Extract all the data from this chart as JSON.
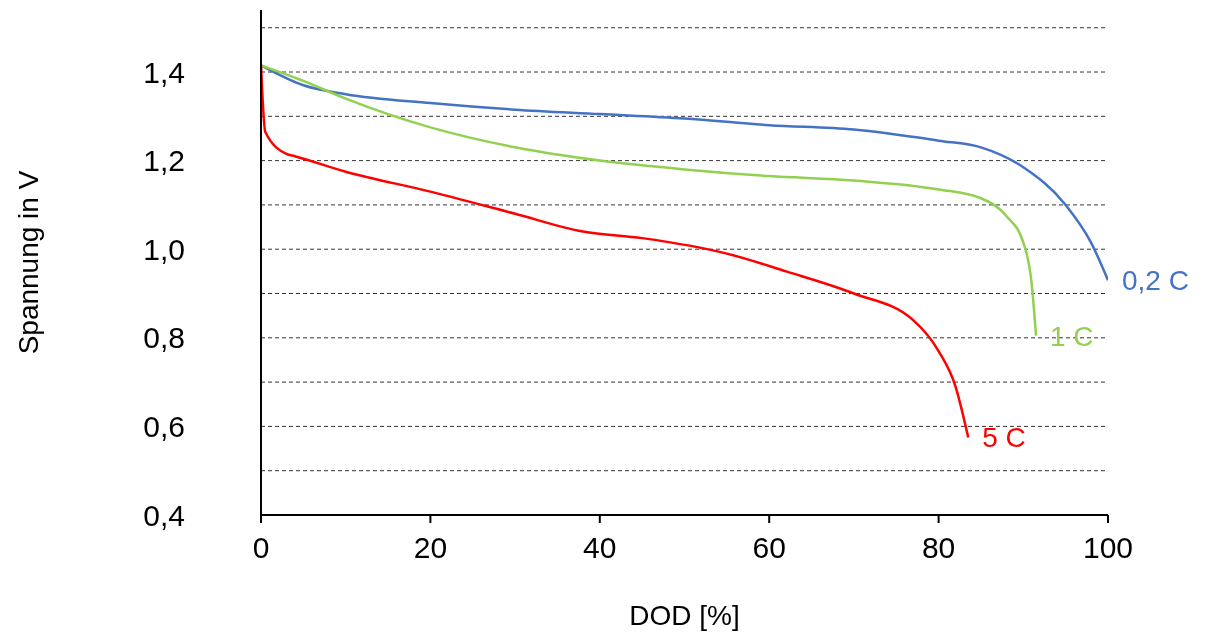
{
  "chart_data": {
    "type": "line",
    "xlabel": "DOD [%]",
    "ylabel": "Spannung in V",
    "xlim": [
      0,
      100
    ],
    "xticks": [
      0,
      20,
      40,
      60,
      80,
      100
    ],
    "ylim": [
      0.4,
      1.54
    ],
    "yticks": [
      {
        "value": 0.4,
        "label": "0,4"
      },
      {
        "value": 0.5,
        "label": null
      },
      {
        "value": 0.6,
        "label": "0,6"
      },
      {
        "value": 0.7,
        "label": null
      },
      {
        "value": 0.8,
        "label": "0,8"
      },
      {
        "value": 0.9,
        "label": null
      },
      {
        "value": 1.0,
        "label": "1,0"
      },
      {
        "value": 1.1,
        "label": null
      },
      {
        "value": 1.2,
        "label": "1,2"
      },
      {
        "value": 1.3,
        "label": null
      },
      {
        "value": 1.4,
        "label": "1,4"
      },
      {
        "value": 1.5,
        "label": null
      }
    ],
    "grid": "y",
    "marker": "none",
    "line_style": "solid",
    "series": [
      {
        "name": "0,2 C",
        "color": "#4472c4",
        "x": [
          0,
          5,
          10,
          20,
          30,
          40,
          50,
          60,
          70,
          80,
          85,
          90,
          95,
          98,
          100
        ],
        "values": [
          1.415,
          1.37,
          1.35,
          1.33,
          1.315,
          1.305,
          1.295,
          1.28,
          1.27,
          1.245,
          1.23,
          1.185,
          1.1,
          1.015,
          0.93
        ]
      },
      {
        "name": "1 C",
        "color": "#92d050",
        "x": [
          0,
          5,
          10,
          20,
          30,
          40,
          50,
          60,
          70,
          80,
          85,
          88,
          90,
          91,
          91.5
        ],
        "values": [
          1.415,
          1.38,
          1.34,
          1.275,
          1.23,
          1.2,
          1.18,
          1.165,
          1.155,
          1.135,
          1.115,
          1.075,
          1.015,
          0.92,
          0.805
        ]
      },
      {
        "name": "5 C",
        "color": "#ff0000",
        "x": [
          0,
          0.5,
          3,
          4,
          10,
          20,
          30,
          38,
          45,
          55,
          62,
          70,
          77,
          80,
          82,
          83.5
        ],
        "values": [
          1.415,
          1.265,
          1.215,
          1.21,
          1.175,
          1.13,
          1.08,
          1.04,
          1.025,
          0.99,
          0.95,
          0.9,
          0.84,
          0.77,
          0.69,
          0.575
        ]
      }
    ]
  }
}
